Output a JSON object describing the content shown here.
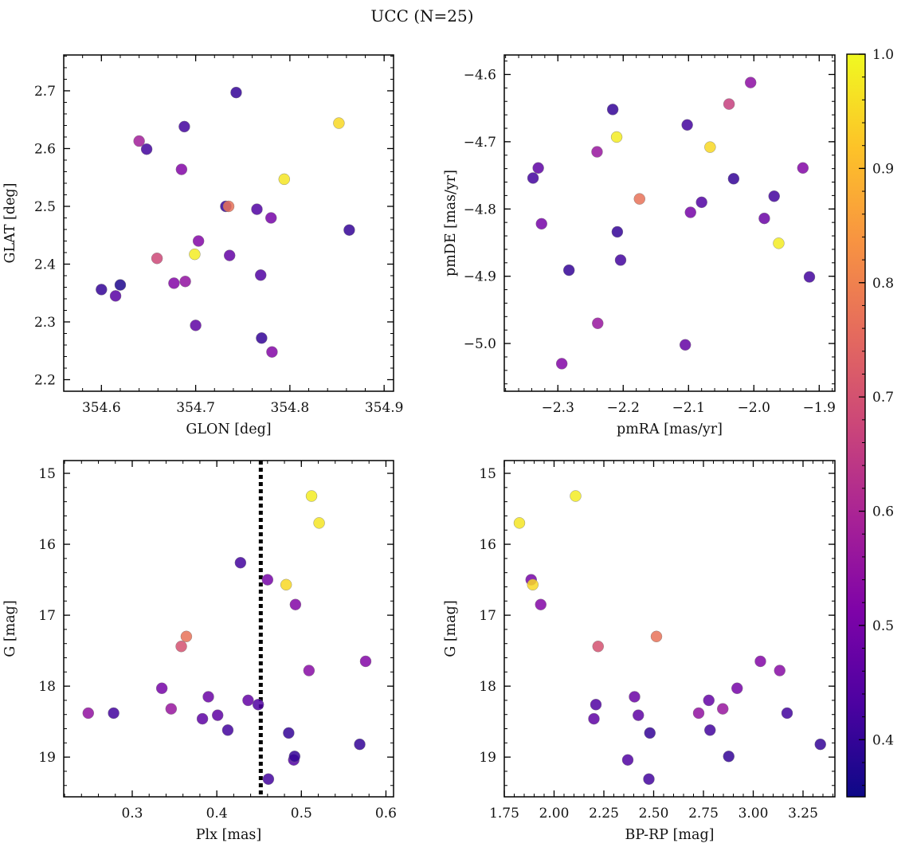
{
  "figure": {
    "title": "UCC (N=25)"
  },
  "colorbar": {
    "range": [
      0.35,
      1.0
    ],
    "ticks": [
      0.4,
      0.5,
      0.6,
      0.7,
      0.8,
      0.9,
      1.0
    ],
    "tick_labels": [
      "0.4",
      "0.5",
      "0.6",
      "0.7",
      "0.8",
      "0.9",
      "1.0"
    ],
    "colormap": "plasma"
  },
  "chart_data": [
    {
      "type": "scatter",
      "panel": "top-left",
      "xlabel": "GLON [deg]",
      "ylabel": "GLAT [deg]",
      "xlim": [
        354.56,
        354.91
      ],
      "ylim": [
        2.18,
        2.762
      ],
      "xticks": [
        354.6,
        354.7,
        354.8,
        354.9
      ],
      "xtick_labels": [
        "354.6",
        "354.7",
        "354.8",
        "354.9"
      ],
      "yticks": [
        2.2,
        2.3,
        2.4,
        2.5,
        2.6,
        2.7
      ],
      "ytick_labels": [
        "2.2",
        "2.3",
        "2.4",
        "2.5",
        "2.6",
        "2.7"
      ],
      "points": [
        {
          "x": 354.6,
          "y": 2.356,
          "c": 0.4
        },
        {
          "x": 354.615,
          "y": 2.345,
          "c": 0.45
        },
        {
          "x": 354.62,
          "y": 2.364,
          "c": 0.37
        },
        {
          "x": 354.64,
          "y": 2.613,
          "c": 0.58
        },
        {
          "x": 354.648,
          "y": 2.599,
          "c": 0.42
        },
        {
          "x": 354.659,
          "y": 2.41,
          "c": 0.68
        },
        {
          "x": 354.677,
          "y": 2.367,
          "c": 0.52
        },
        {
          "x": 354.685,
          "y": 2.564,
          "c": 0.52
        },
        {
          "x": 354.688,
          "y": 2.638,
          "c": 0.42
        },
        {
          "x": 354.689,
          "y": 2.37,
          "c": 0.55
        },
        {
          "x": 354.699,
          "y": 2.417,
          "c": 0.98
        },
        {
          "x": 354.7,
          "y": 2.294,
          "c": 0.46
        },
        {
          "x": 354.703,
          "y": 2.44,
          "c": 0.52
        },
        {
          "x": 354.732,
          "y": 2.5,
          "c": 0.4
        },
        {
          "x": 354.735,
          "y": 2.5,
          "c": 0.77
        },
        {
          "x": 354.736,
          "y": 2.415,
          "c": 0.47
        },
        {
          "x": 354.743,
          "y": 2.697,
          "c": 0.4
        },
        {
          "x": 354.765,
          "y": 2.495,
          "c": 0.44
        },
        {
          "x": 354.769,
          "y": 2.381,
          "c": 0.44
        },
        {
          "x": 354.77,
          "y": 2.272,
          "c": 0.4
        },
        {
          "x": 354.78,
          "y": 2.48,
          "c": 0.5
        },
        {
          "x": 354.781,
          "y": 2.248,
          "c": 0.52
        },
        {
          "x": 354.794,
          "y": 2.547,
          "c": 0.97
        },
        {
          "x": 354.852,
          "y": 2.644,
          "c": 0.95
        },
        {
          "x": 354.863,
          "y": 2.459,
          "c": 0.4
        }
      ]
    },
    {
      "type": "scatter",
      "panel": "top-right",
      "xlabel": "pmRA [mas/yr]",
      "ylabel": "pmDE [mas/yr]",
      "xlim": [
        -2.382,
        -1.876
      ],
      "ylim": [
        -5.071,
        -4.571
      ],
      "xticks": [
        -2.3,
        -2.2,
        -2.1,
        -2.0,
        -1.9
      ],
      "xtick_labels": [
        "−2.3",
        "−2.2",
        "−2.1",
        "−2.0",
        "−1.9"
      ],
      "yticks": [
        -5.0,
        -4.9,
        -4.8,
        -4.7,
        -4.6
      ],
      "ytick_labels": [
        "−5.0",
        "−4.9",
        "−4.8",
        "−4.7",
        "−4.6"
      ],
      "points": [
        {
          "x": -2.338,
          "y": -4.754,
          "c": 0.42
        },
        {
          "x": -2.33,
          "y": -4.739,
          "c": 0.46
        },
        {
          "x": -2.325,
          "y": -4.822,
          "c": 0.5
        },
        {
          "x": -2.294,
          "y": -5.03,
          "c": 0.52
        },
        {
          "x": -2.283,
          "y": -4.891,
          "c": 0.4
        },
        {
          "x": -2.24,
          "y": -4.715,
          "c": 0.56
        },
        {
          "x": -2.239,
          "y": -4.97,
          "c": 0.56
        },
        {
          "x": -2.216,
          "y": -4.652,
          "c": 0.4
        },
        {
          "x": -2.21,
          "y": -4.693,
          "c": 0.98
        },
        {
          "x": -2.209,
          "y": -4.834,
          "c": 0.4
        },
        {
          "x": -2.204,
          "y": -4.876,
          "c": 0.42
        },
        {
          "x": -2.175,
          "y": -4.785,
          "c": 0.77
        },
        {
          "x": -2.105,
          "y": -5.002,
          "c": 0.47
        },
        {
          "x": -2.102,
          "y": -4.675,
          "c": 0.42
        },
        {
          "x": -2.097,
          "y": -4.805,
          "c": 0.5
        },
        {
          "x": -2.08,
          "y": -4.79,
          "c": 0.44
        },
        {
          "x": -2.067,
          "y": -4.708,
          "c": 0.95
        },
        {
          "x": -2.038,
          "y": -4.644,
          "c": 0.66
        },
        {
          "x": -2.031,
          "y": -4.755,
          "c": 0.4
        },
        {
          "x": -2.005,
          "y": -4.612,
          "c": 0.54
        },
        {
          "x": -1.984,
          "y": -4.814,
          "c": 0.48
        },
        {
          "x": -1.969,
          "y": -4.781,
          "c": 0.42
        },
        {
          "x": -1.962,
          "y": -4.851,
          "c": 0.98
        },
        {
          "x": -1.925,
          "y": -4.739,
          "c": 0.52
        },
        {
          "x": -1.915,
          "y": -4.901,
          "c": 0.42
        }
      ]
    },
    {
      "type": "scatter",
      "panel": "bottom-left",
      "xlabel": "Plx [mas]",
      "ylabel": "G [mag]",
      "xlim": [
        0.219,
        0.609
      ],
      "ylim": [
        19.56,
        14.82
      ],
      "xticks": [
        0.3,
        0.4,
        0.5,
        0.6
      ],
      "xtick_labels": [
        "0.3",
        "0.4",
        "0.5",
        "0.6"
      ],
      "yticks": [
        15,
        16,
        17,
        18,
        19
      ],
      "ytick_labels": [
        "15",
        "16",
        "17",
        "18",
        "19"
      ],
      "vline": {
        "x": 0.452,
        "style": "dotted"
      },
      "points": [
        {
          "x": 0.248,
          "y": 18.38,
          "c": 0.55
        },
        {
          "x": 0.278,
          "y": 18.38,
          "c": 0.42
        },
        {
          "x": 0.335,
          "y": 18.03,
          "c": 0.5
        },
        {
          "x": 0.346,
          "y": 18.32,
          "c": 0.56
        },
        {
          "x": 0.358,
          "y": 17.44,
          "c": 0.7
        },
        {
          "x": 0.364,
          "y": 17.3,
          "c": 0.77
        },
        {
          "x": 0.383,
          "y": 18.46,
          "c": 0.46
        },
        {
          "x": 0.39,
          "y": 18.15,
          "c": 0.48
        },
        {
          "x": 0.401,
          "y": 18.41,
          "c": 0.46
        },
        {
          "x": 0.413,
          "y": 18.62,
          "c": 0.42
        },
        {
          "x": 0.428,
          "y": 16.26,
          "c": 0.42
        },
        {
          "x": 0.437,
          "y": 18.2,
          "c": 0.47
        },
        {
          "x": 0.449,
          "y": 18.26,
          "c": 0.44
        },
        {
          "x": 0.46,
          "y": 16.5,
          "c": 0.5
        },
        {
          "x": 0.461,
          "y": 19.31,
          "c": 0.42
        },
        {
          "x": 0.482,
          "y": 16.57,
          "c": 0.95
        },
        {
          "x": 0.485,
          "y": 18.66,
          "c": 0.4
        },
        {
          "x": 0.491,
          "y": 19.04,
          "c": 0.44
        },
        {
          "x": 0.492,
          "y": 18.99,
          "c": 0.4
        },
        {
          "x": 0.493,
          "y": 16.85,
          "c": 0.52
        },
        {
          "x": 0.509,
          "y": 17.78,
          "c": 0.53
        },
        {
          "x": 0.512,
          "y": 15.32,
          "c": 0.98
        },
        {
          "x": 0.521,
          "y": 15.7,
          "c": 0.97
        },
        {
          "x": 0.569,
          "y": 18.82,
          "c": 0.4
        },
        {
          "x": 0.576,
          "y": 17.65,
          "c": 0.52
        }
      ]
    },
    {
      "type": "scatter",
      "panel": "bottom-right",
      "xlabel": "BP-RP [mag]",
      "ylabel": "G [mag]",
      "xlim": [
        1.75,
        3.41
      ],
      "ylim": [
        19.56,
        14.82
      ],
      "xticks": [
        1.75,
        2.0,
        2.25,
        2.5,
        2.75,
        3.0,
        3.25
      ],
      "xtick_labels": [
        "1.75",
        "2.00",
        "2.25",
        "2.50",
        "2.75",
        "3.00",
        "3.25"
      ],
      "yticks": [
        15,
        16,
        17,
        18,
        19
      ],
      "ytick_labels": [
        "15",
        "16",
        "17",
        "18",
        "19"
      ],
      "points": [
        {
          "x": 1.826,
          "y": 15.7,
          "c": 0.97
        },
        {
          "x": 1.885,
          "y": 16.5,
          "c": 0.5
        },
        {
          "x": 1.893,
          "y": 16.57,
          "c": 0.95
        },
        {
          "x": 1.933,
          "y": 16.85,
          "c": 0.52
        },
        {
          "x": 2.108,
          "y": 15.32,
          "c": 0.98
        },
        {
          "x": 2.2,
          "y": 18.46,
          "c": 0.46
        },
        {
          "x": 2.21,
          "y": 18.26,
          "c": 0.44
        },
        {
          "x": 2.221,
          "y": 17.44,
          "c": 0.7
        },
        {
          "x": 2.37,
          "y": 19.04,
          "c": 0.44
        },
        {
          "x": 2.404,
          "y": 18.15,
          "c": 0.48
        },
        {
          "x": 2.423,
          "y": 18.41,
          "c": 0.46
        },
        {
          "x": 2.476,
          "y": 19.31,
          "c": 0.42
        },
        {
          "x": 2.481,
          "y": 18.66,
          "c": 0.4
        },
        {
          "x": 2.514,
          "y": 17.3,
          "c": 0.77
        },
        {
          "x": 2.726,
          "y": 18.38,
          "c": 0.55
        },
        {
          "x": 2.777,
          "y": 18.2,
          "c": 0.47
        },
        {
          "x": 2.783,
          "y": 18.62,
          "c": 0.42
        },
        {
          "x": 2.847,
          "y": 18.32,
          "c": 0.56
        },
        {
          "x": 2.877,
          "y": 18.99,
          "c": 0.4
        },
        {
          "x": 2.919,
          "y": 18.03,
          "c": 0.5
        },
        {
          "x": 3.036,
          "y": 17.65,
          "c": 0.52
        },
        {
          "x": 3.133,
          "y": 17.78,
          "c": 0.53
        },
        {
          "x": 3.17,
          "y": 18.38,
          "c": 0.42
        },
        {
          "x": 3.337,
          "y": 18.82,
          "c": 0.4
        }
      ]
    }
  ]
}
